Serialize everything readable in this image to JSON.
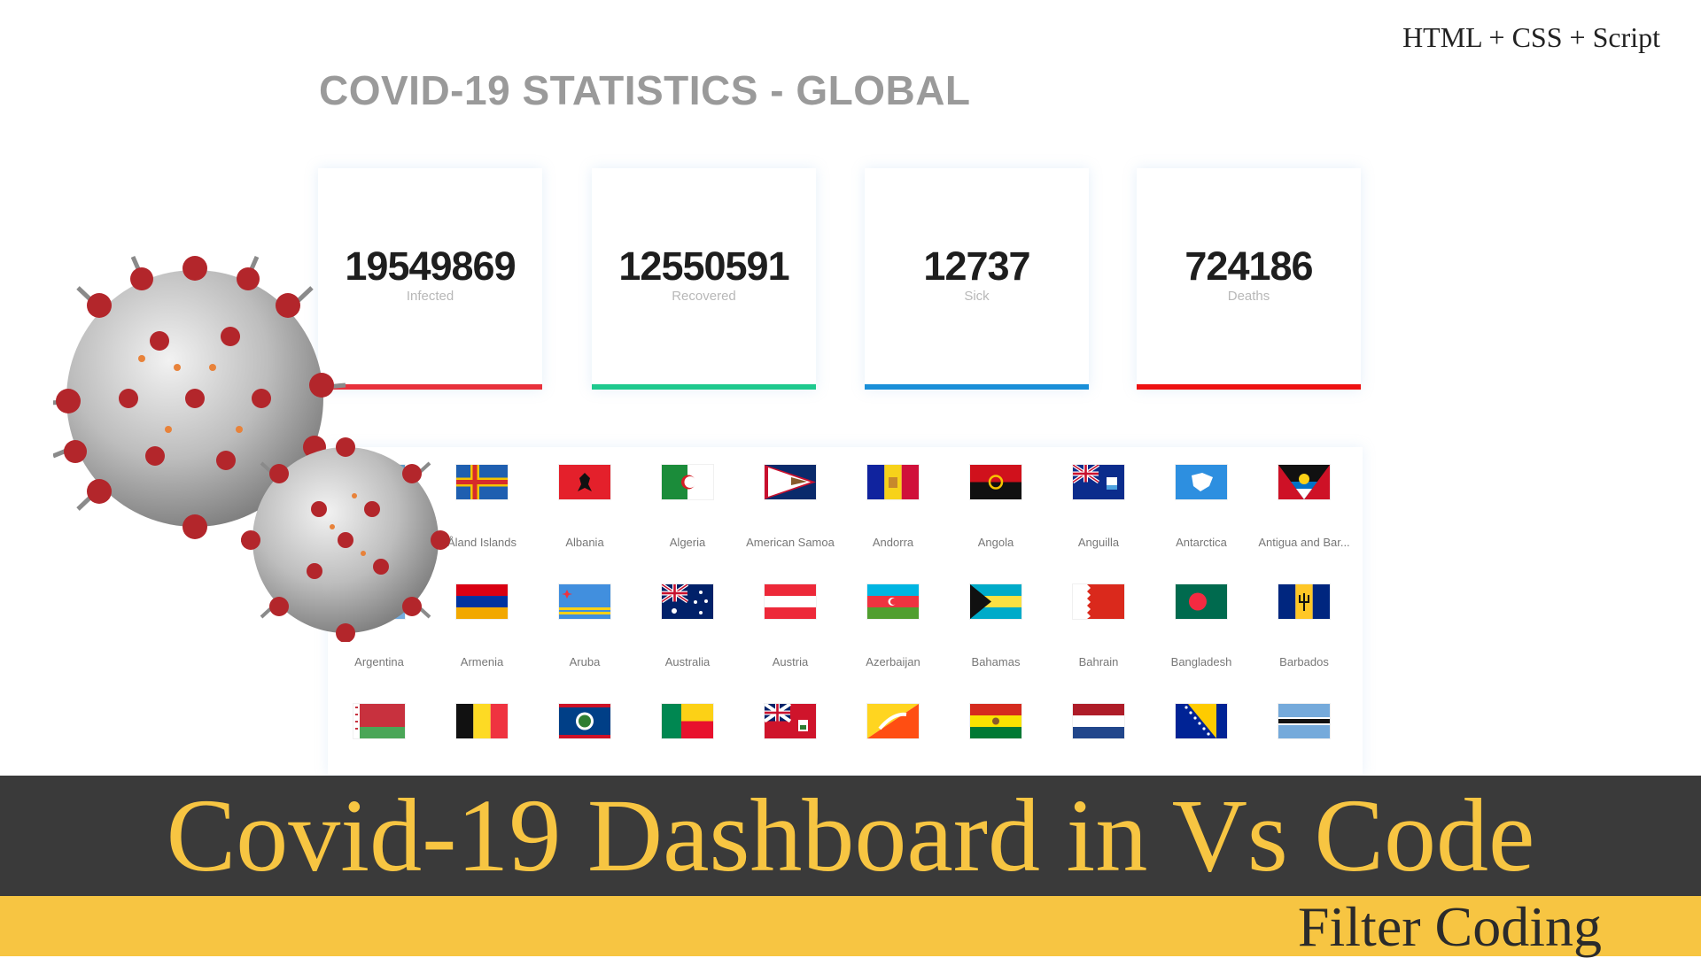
{
  "header": {
    "tech_label": "HTML + CSS + Script",
    "page_title": "COVID-19 STATISTICS - GLOBAL"
  },
  "stats": [
    {
      "value": "19549869",
      "label": "Infected",
      "color": "#e8313c"
    },
    {
      "value": "12550591",
      "label": "Recovered",
      "color": "#1fc98e"
    },
    {
      "value": "12737",
      "label": "Sick",
      "color": "#1a8fd8"
    },
    {
      "value": "724186",
      "label": "Deaths",
      "color": "#ee1111"
    }
  ],
  "countries": {
    "row1": [
      "",
      "Åland Islands",
      "Albania",
      "Algeria",
      "American Samoa",
      "Andorra",
      "Angola",
      "Anguilla",
      "Antarctica",
      "Antigua and Bar..."
    ],
    "row2": [
      "Argentina",
      "Armenia",
      "Aruba",
      "Australia",
      "Austria",
      "Azerbaijan",
      "Bahamas",
      "Bahrain",
      "Bangladesh",
      "Barbados"
    ]
  },
  "banner": {
    "title": "Covid-19 Dashboard in Vs Code",
    "subtitle": "Filter Coding"
  },
  "colors": {
    "banner_bg": "#3a3a3a",
    "banner_text": "#f7c542",
    "footer_bg": "#f7c542",
    "virus_body": "#c9c9c9",
    "virus_spike": "#b3262b"
  },
  "icons": {
    "virus": "coronavirus-illustration"
  }
}
